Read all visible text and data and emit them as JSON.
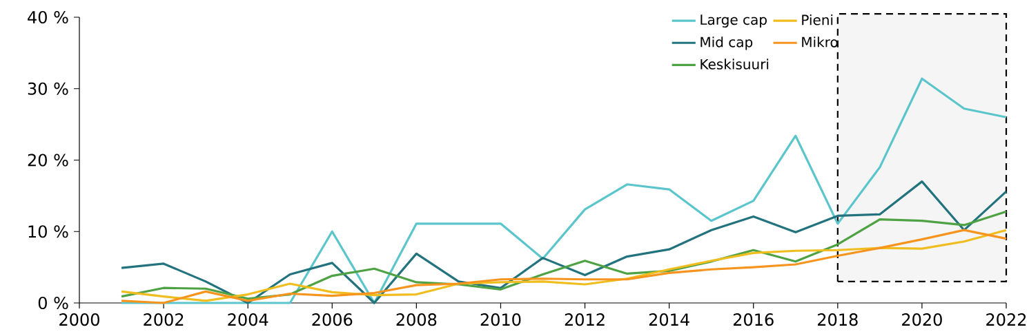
{
  "chart_data": {
    "type": "line",
    "x": [
      2001,
      2002,
      2003,
      2004,
      2005,
      2006,
      2007,
      2008,
      2009,
      2010,
      2011,
      2012,
      2013,
      2014,
      2015,
      2016,
      2017,
      2018,
      2019,
      2020,
      2021,
      2022
    ],
    "series": [
      {
        "name": "Large cap",
        "color": "#5bc5cc",
        "values": [
          0,
          0,
          0,
          0,
          0,
          10,
          0,
          11.1,
          11.1,
          11.1,
          6.2,
          13.1,
          16.6,
          15.9,
          11.5,
          14.3,
          23.4,
          11.1,
          19.0,
          31.4,
          27.2,
          26.0
        ]
      },
      {
        "name": "Mid cap",
        "color": "#22737d",
        "values": [
          4.9,
          5.5,
          3.0,
          0,
          4.0,
          5.6,
          0,
          6.9,
          3.0,
          2.1,
          6.3,
          3.9,
          6.5,
          7.5,
          10.2,
          12.1,
          9.9,
          12.2,
          12.4,
          17.0,
          10.2,
          15.6
        ]
      },
      {
        "name": "Keskisuuri",
        "color": "#4ea244",
        "values": [
          0.9,
          2.1,
          2.0,
          0.6,
          1.2,
          3.8,
          4.8,
          2.9,
          2.6,
          1.9,
          4.0,
          5.9,
          4.1,
          4.5,
          5.8,
          7.4,
          5.8,
          8.2,
          11.7,
          11.5,
          10.9,
          12.8
        ]
      },
      {
        "name": "Pieni",
        "color": "#f0bd1e",
        "values": [
          1.6,
          0.9,
          0.3,
          1.2,
          2.7,
          1.5,
          1.1,
          1.2,
          2.7,
          2.9,
          3.0,
          2.6,
          3.4,
          4.7,
          5.9,
          7.0,
          7.3,
          7.4,
          7.7,
          7.6,
          8.6,
          10.2
        ]
      },
      {
        "name": "Mikro",
        "color": "#f7941d",
        "values": [
          0.3,
          0,
          1.6,
          0.3,
          1.3,
          1.0,
          1.4,
          2.5,
          2.7,
          3.3,
          3.4,
          3.3,
          3.3,
          4.2,
          4.7,
          5.0,
          5.4,
          6.6,
          7.7,
          8.9,
          10.2,
          9.0
        ]
      }
    ],
    "xlim": [
      2000,
      2022
    ],
    "ylim": [
      0,
      40
    ],
    "xticks": [
      2000,
      2002,
      2004,
      2006,
      2008,
      2010,
      2012,
      2014,
      2016,
      2018,
      2020,
      2022
    ],
    "yticks": [
      {
        "value": 0,
        "label": "0 %"
      },
      {
        "value": 10,
        "label": "10 %"
      },
      {
        "value": 20,
        "label": "20 %"
      },
      {
        "value": 30,
        "label": "30 %"
      },
      {
        "value": 40,
        "label": "40 %"
      }
    ],
    "bands": [
      {
        "axis": "x",
        "from": 2018,
        "to": 2022,
        "color": "#000000"
      }
    ],
    "legend": "top",
    "grid": false,
    "marker": "none",
    "line_style": "solid"
  }
}
